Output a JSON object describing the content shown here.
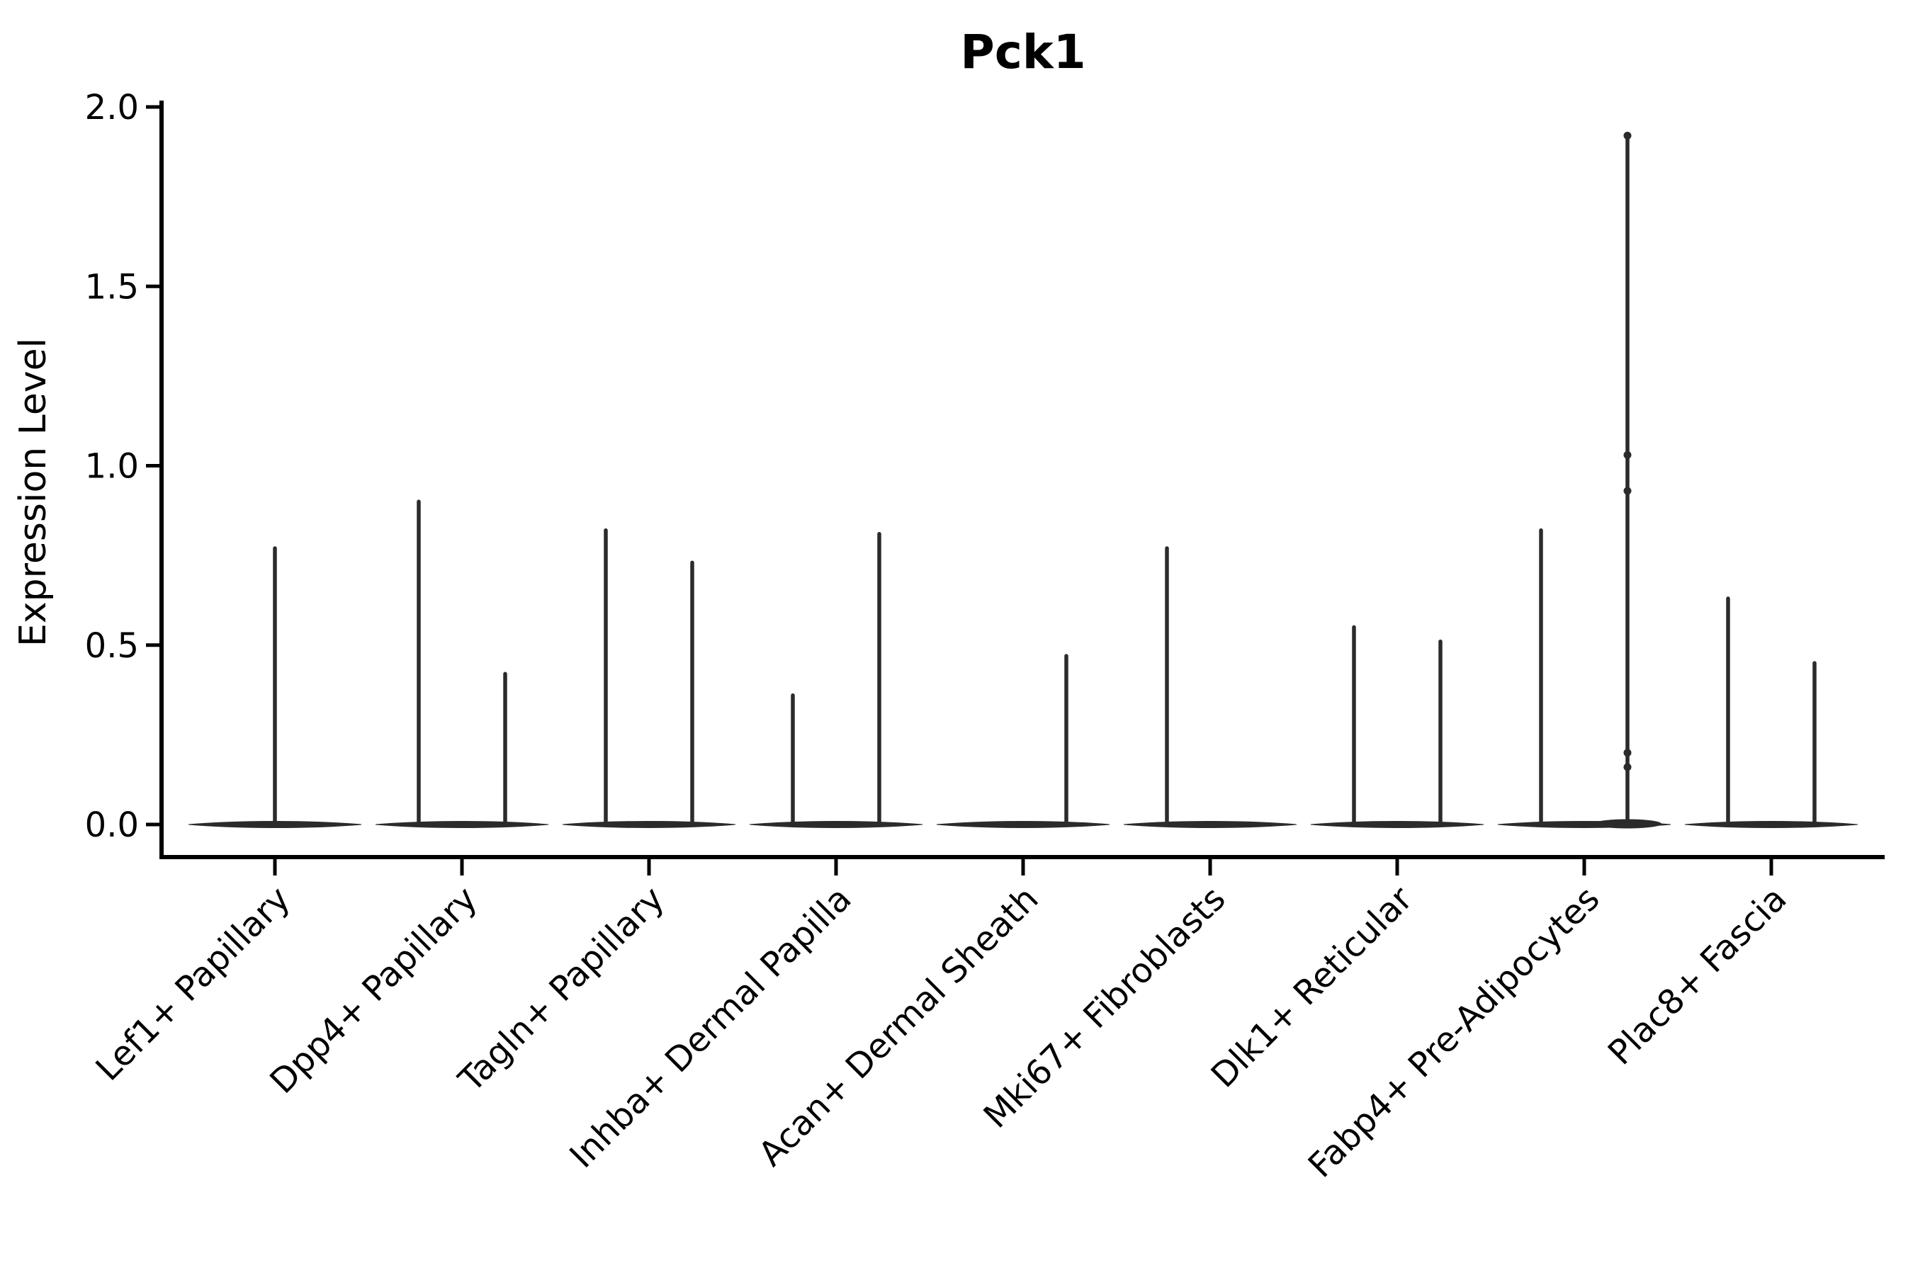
{
  "colors": {
    "background": "#ffffff",
    "axis": "#000000",
    "violin": "#2b2b2b",
    "text": "#000000"
  },
  "chart_data": {
    "type": "violin",
    "title": "Pck1",
    "xlabel": "",
    "ylabel": "Expression Level",
    "ylim": [
      0,
      2.0
    ],
    "yticks": [
      0.0,
      0.5,
      1.0,
      1.5,
      2.0
    ],
    "ytick_labels": [
      "0.0",
      "0.5",
      "1.0",
      "1.5",
      "2.0"
    ],
    "grid": false,
    "legend_position": "none",
    "description": "Single-cell expression violin plot; most cells have zero expression so violins collapse to a flat lens at 0 with thin spikes rising to the maximum expression value of each group.",
    "categories": [
      {
        "label": "Lef1+ Papillary",
        "violins": [
          {
            "side": "full",
            "max": 0.77
          }
        ]
      },
      {
        "label": "Dpp4+ Papillary",
        "violins": [
          {
            "side": "left",
            "max": 0.9
          },
          {
            "side": "right",
            "max": 0.42
          }
        ]
      },
      {
        "label": "Tagln+ Papillary",
        "violins": [
          {
            "side": "left",
            "max": 0.82
          },
          {
            "side": "right",
            "max": 0.73
          }
        ]
      },
      {
        "label": "Inhba+ Dermal Papilla",
        "violins": [
          {
            "side": "left",
            "max": 0.36
          },
          {
            "side": "right",
            "max": 0.81
          }
        ]
      },
      {
        "label": "Acan+ Dermal Sheath",
        "violins": [
          {
            "side": "right",
            "max": 0.47
          }
        ]
      },
      {
        "label": "Mki67+ Fibroblasts",
        "violins": [
          {
            "side": "left",
            "max": 0.77
          }
        ]
      },
      {
        "label": "Dlk1+ Reticular",
        "violins": [
          {
            "side": "left",
            "max": 0.55
          },
          {
            "side": "right",
            "max": 0.51
          }
        ]
      },
      {
        "label": "Fabp4+ Pre-Adipocytes",
        "violins": [
          {
            "side": "left",
            "max": 0.82
          },
          {
            "side": "right",
            "max": 1.92,
            "points": [
              1.92,
              1.03,
              0.93,
              0.2,
              0.16
            ],
            "base_bulge": true
          }
        ]
      },
      {
        "label": "Plac8+ Fascia",
        "violins": [
          {
            "side": "left",
            "max": 0.63
          },
          {
            "side": "right",
            "max": 0.45
          }
        ]
      }
    ]
  }
}
